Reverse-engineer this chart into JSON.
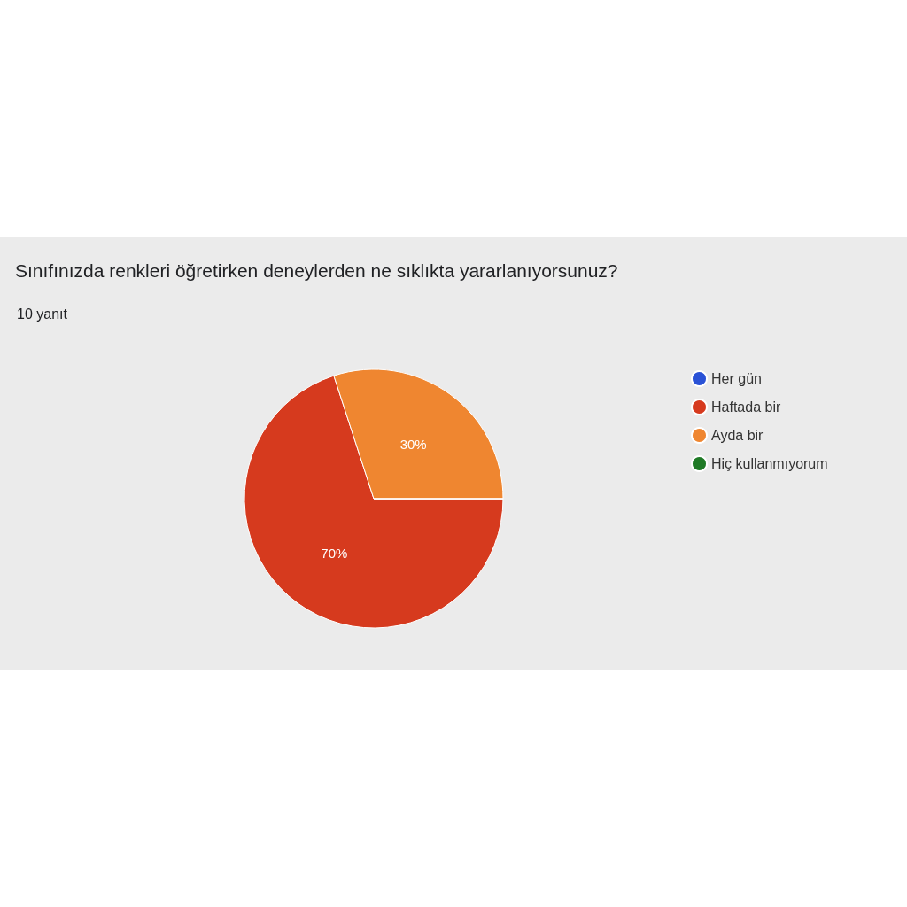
{
  "chart_data": {
    "type": "pie",
    "title": "Sınıfınızda renkleri öğretirken deneylerden ne sıklıkta yararlanıyorsunuz?",
    "subtitle": "10 yanıt",
    "categories": [
      "Her gün",
      "Haftada bir",
      "Ayda bir",
      "Hiç kullanmıyorum"
    ],
    "values": [
      0,
      70,
      30,
      0
    ],
    "colors": [
      "#2a52d6",
      "#d63a1e",
      "#ef8630",
      "#1f7a26"
    ],
    "value_labels": [
      null,
      "70%",
      "30%",
      null
    ],
    "legend": "right"
  }
}
